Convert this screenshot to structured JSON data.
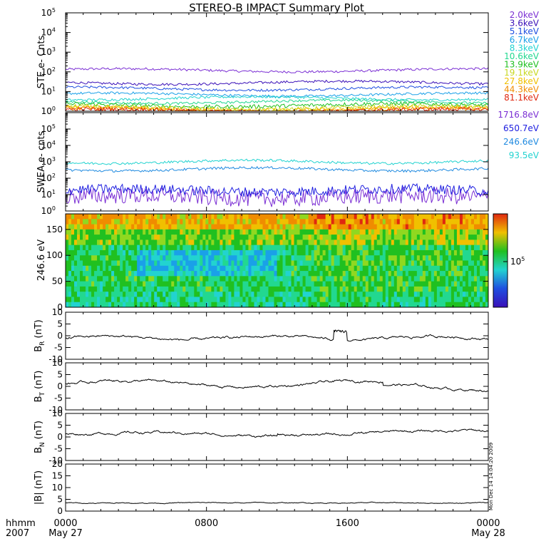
{
  "title": "STEREO-B IMPACT Summary Plot",
  "footer": {
    "time_unit": "hhmm",
    "year": "2007",
    "start_date": "May 27",
    "end_date": "May 28",
    "x_ticks": [
      "0000",
      "0800",
      "1600",
      "0000"
    ]
  },
  "timestamp_note": "Mon Dec 14 14:04:20 2009",
  "colors": {
    "axis": "#000000",
    "trace": "#000000",
    "background": "#ffffff"
  },
  "chart_data": [
    {
      "panel": "ste",
      "type": "line",
      "ylabel": "STE e- Cnts",
      "yscale": "log",
      "ylim": [
        1,
        100000
      ],
      "y_ticks": [
        "10",
        "10",
        "10",
        "10",
        "10",
        "10"
      ],
      "y_tick_exponents": [
        "0",
        "1",
        "2",
        "3",
        "4",
        "5"
      ],
      "x_range_hours": [
        0,
        24
      ],
      "series": [
        {
          "name": "2.0keV",
          "color": "#7b2fd4",
          "level": 120
        },
        {
          "name": "3.6keV",
          "color": "#3a10b8",
          "level": 28
        },
        {
          "name": "5.1keV",
          "color": "#1f4fe0",
          "level": 14
        },
        {
          "name": "6.7keV",
          "color": "#1aa0e8",
          "level": 7
        },
        {
          "name": "8.3keV",
          "color": "#22d3d0",
          "level": 4.5
        },
        {
          "name": "10.6keV",
          "color": "#22d890",
          "level": 3
        },
        {
          "name": "13.9keV",
          "color": "#20c020",
          "level": 2
        },
        {
          "name": "19.1keV",
          "color": "#c8d820",
          "level": 1.5
        },
        {
          "name": "27.8keV",
          "color": "#f0c000",
          "level": 1.3
        },
        {
          "name": "44.3keV",
          "color": "#f08c00",
          "level": 1.15
        },
        {
          "name": "81.1keV",
          "color": "#e02810",
          "level": 1.05
        }
      ]
    },
    {
      "panel": "swea",
      "type": "line",
      "ylabel": "SWEA e- cnts",
      "yscale": "log",
      "ylim": [
        1,
        1000000
      ],
      "y_ticks": [
        "10",
        "10",
        "10",
        "10",
        "10",
        "10"
      ],
      "y_tick_exponents": [
        "0",
        "1",
        "2",
        "3",
        "4",
        "5"
      ],
      "x_range_hours": [
        0,
        24
      ],
      "series": [
        {
          "name": "1716.8eV",
          "color": "#7b2fd4",
          "level": 7
        },
        {
          "name": "650.7eV",
          "color": "#2020e0",
          "level": 18
        },
        {
          "name": "246.6eV",
          "color": "#1f8ae0",
          "level": 350
        },
        {
          "name": "93.5eV",
          "color": "#22d3d0",
          "level": 1000
        }
      ]
    },
    {
      "panel": "pad",
      "type": "heatmap",
      "ylabel": "246.6 eV",
      "ylim": [
        0,
        180
      ],
      "y_ticks": [
        "0",
        "50",
        "100",
        "150"
      ],
      "x_range_hours": [
        0,
        24
      ],
      "colorbar_label": "10",
      "colorbar_exponent": "5"
    },
    {
      "panel": "br",
      "type": "line",
      "ylabel_main": "B",
      "ylabel_sub": "R",
      "ylabel_unit": "(nT)",
      "ylim": [
        -10,
        10
      ],
      "y_ticks": [
        "-10",
        "-5",
        "0",
        "5",
        "10"
      ],
      "x_range_hours": [
        0,
        24
      ],
      "typical_value": -1
    },
    {
      "panel": "bt",
      "type": "line",
      "ylabel_main": "B",
      "ylabel_sub": "T",
      "ylabel_unit": "(nT)",
      "ylim": [
        -10,
        10
      ],
      "y_ticks": [
        "-10",
        "-5",
        "0",
        "5",
        "10"
      ],
      "x_range_hours": [
        0,
        24
      ],
      "typical_value": 1
    },
    {
      "panel": "bn",
      "type": "line",
      "ylabel_main": "B",
      "ylabel_sub": "N",
      "ylabel_unit": "(nT)",
      "ylim": [
        -10,
        10
      ],
      "y_ticks": [
        "-10",
        "-5",
        "0",
        "5",
        "10"
      ],
      "x_range_hours": [
        0,
        24
      ],
      "typical_value": 1
    },
    {
      "panel": "bmag",
      "type": "line",
      "ylabel": "|B| (nT)",
      "ylim": [
        0,
        20
      ],
      "y_ticks": [
        "0",
        "5",
        "10",
        "15",
        "20"
      ],
      "x_range_hours": [
        0,
        24
      ],
      "typical_value": 3.5
    }
  ]
}
